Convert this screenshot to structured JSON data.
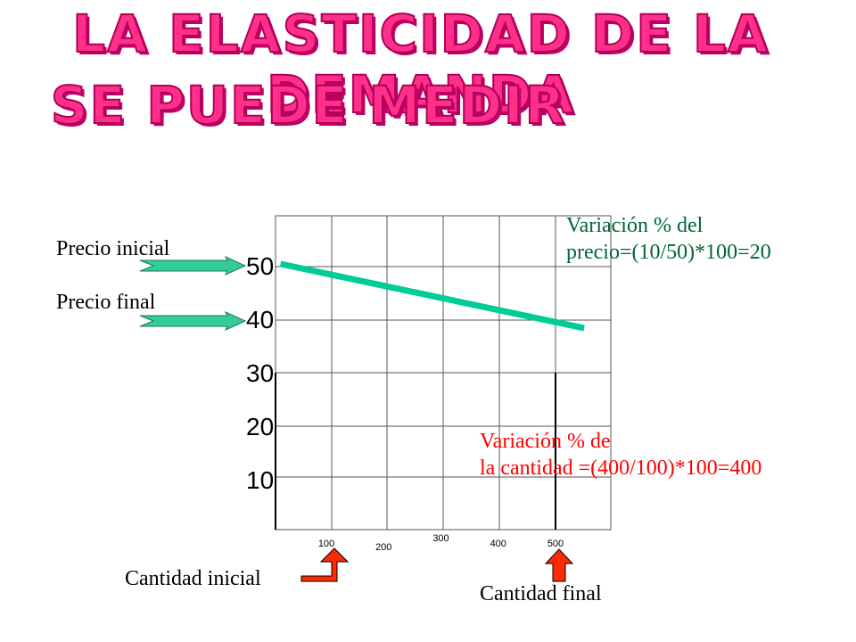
{
  "title_line1": "LA ELASTICIDAD DE LA DEMANDA",
  "title_line2": "SE PUEDE MEDIR",
  "labels": {
    "precio_inicial": "Precio inicial",
    "precio_final": "Precio final",
    "cantidad_inicial": "Cantidad inicial",
    "cantidad_final": "Cantidad final"
  },
  "annotations": {
    "precio_line1": "Variación % del",
    "precio_line2": "precio=(10/50)*100=20",
    "cantidad_line1": "Variación % de",
    "cantidad_line2": "la cantidad =(400/100)*100=400"
  },
  "colors": {
    "title": "#ff2f8a",
    "demand_line": "#00cc99",
    "price_arrow": "#33cc99",
    "quantity_arrow": "#ff2a00",
    "annotation_price": "#006633",
    "annotation_quantity": "#ff0000"
  },
  "icons": {
    "price_arrow": "right-arrow-icon",
    "quantity_arrow": "up-arrow-icon"
  },
  "chart_data": {
    "type": "line",
    "title": "",
    "xlabel": "",
    "ylabel": "",
    "grid": true,
    "yticks": [
      {
        "label": "50",
        "value": 50
      },
      {
        "label": "40",
        "value": 40
      },
      {
        "label": "30",
        "value": 30
      },
      {
        "label": "20",
        "value": 20
      },
      {
        "label": "10",
        "value": 10
      }
    ],
    "xticks": [
      {
        "label": "100",
        "value": 100
      },
      {
        "label": "200",
        "value": 200
      },
      {
        "label": "300",
        "value": 300
      },
      {
        "label": "400",
        "value": 400
      },
      {
        "label": "500",
        "value": 500
      }
    ],
    "series": [
      {
        "x": [
          20,
          550
        ],
        "y": [
          50,
          38
        ]
      }
    ]
  }
}
